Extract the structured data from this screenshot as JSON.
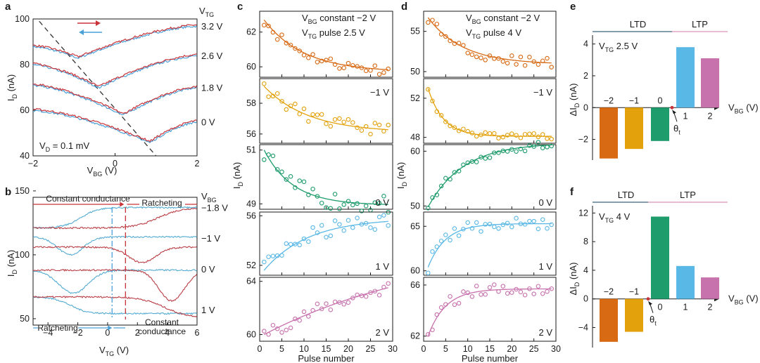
{
  "panel_labels": {
    "a": "a",
    "b": "b",
    "c": "c",
    "d": "d",
    "e": "e",
    "f": "f"
  },
  "colors": {
    "red": "#c8343a",
    "blue": "#4aa0d8",
    "orange": "#d86a14",
    "gold": "#e3a20c",
    "green": "#1e9c6c",
    "sky": "#5ab8e6",
    "pink": "#c772ad",
    "dark": "#1a1a1a"
  },
  "chart_data": [
    {
      "id": "a",
      "type": "line",
      "xlabel": "V_BG (V)",
      "ylabel": "I_D (nA)",
      "xlim": [
        -2,
        2
      ],
      "ylim": [
        40,
        100
      ],
      "xticks": [
        "-2",
        "0",
        "2"
      ],
      "yticks": [
        "40",
        "60",
        "80",
        "100"
      ],
      "legend_title": "V_TG",
      "annotation": "V_D = 0.1 mV",
      "series": [
        {
          "name": "3.2 V",
          "min_x": -0.9,
          "min_y": 83,
          "left_y": 88,
          "right_y": 97
        },
        {
          "name": "2.6 V",
          "min_x": -0.4,
          "min_y": 70,
          "left_y": 80,
          "right_y": 84
        },
        {
          "name": "1.8 V",
          "min_x": 0.2,
          "min_y": 58,
          "left_y": 71,
          "right_y": 70
        },
        {
          "name": "0 V",
          "min_x": 0.85,
          "min_y": 46,
          "left_y": 60,
          "right_y": 55
        }
      ],
      "dashed_line": {
        "x": [
          -1.85,
          1.0
        ],
        "y": [
          99,
          40
        ]
      }
    },
    {
      "id": "b",
      "type": "line",
      "xlabel": "V_TG (V)",
      "ylabel": "I_D (nA)",
      "xlim": [
        -5,
        6
      ],
      "ylim": [
        45,
        145
      ],
      "xticks": [
        "-4",
        "-2",
        "0",
        "2",
        "4",
        "6"
      ],
      "yticks": [
        "50",
        "100",
        "150"
      ],
      "legend_title": "V_BG",
      "series_names": [
        "-1.8 V",
        "-1 V",
        "0 V",
        "1 V"
      ],
      "annotations": [
        "Constant conductance",
        "Ratcheting",
        "Ratcheting",
        "Constant conductance"
      ],
      "vlines": [
        0.3,
        1.2
      ]
    },
    {
      "id": "c",
      "type": "scatter",
      "xlabel": "Pulse number",
      "ylabel": "I_D (nA)",
      "xticks": [
        "0",
        "5",
        "10",
        "15",
        "20",
        "25",
        "30"
      ],
      "xlim": [
        0,
        30
      ],
      "header": [
        "V_BG constant −2 V",
        "V_TG pulse 2.5 V"
      ],
      "subplots": [
        {
          "label": "",
          "ylim": [
            59.4,
            63.2
          ],
          "yticks": [
            "60",
            "62"
          ],
          "y0": 62.7,
          "yinf": 59.7,
          "tau": 9,
          "noise": 0.15
        },
        {
          "label": "−1 V",
          "ylim": [
            55.4,
            59.6
          ],
          "yticks": [
            "56",
            "58"
          ],
          "y0": 59.1,
          "yinf": 56.1,
          "tau": 10,
          "noise": 0.2
        },
        {
          "label": "0 V",
          "ylim": [
            48.8,
            51.2
          ],
          "yticks": [
            "49",
            "51"
          ],
          "y0": 51.0,
          "yinf": 48.95,
          "tau": 6.5,
          "noise": 0.18
        },
        {
          "label": "1 V",
          "ylim": [
            51.2,
            56.3
          ],
          "yticks": [
            "52",
            "56"
          ],
          "y0": 51.6,
          "yinf": 55.8,
          "tau": 10,
          "noise": 0.35
        },
        {
          "label": "2 V",
          "ylim": [
            59.5,
            64.3
          ],
          "yticks": [
            "60",
            "64"
          ],
          "y0": 60.0,
          "yinf": 67.0,
          "tau": 40,
          "noise": 0.25
        }
      ]
    },
    {
      "id": "d",
      "type": "scatter",
      "xlabel": "Pulse number",
      "ylabel": "I_D (nA)",
      "xticks": [
        "0",
        "5",
        "10",
        "15",
        "20",
        "25",
        "30"
      ],
      "xlim": [
        0,
        30
      ],
      "header": [
        "V_BG constant −2 V",
        "V_TG pulse 4 V"
      ],
      "subplots": [
        {
          "label": "",
          "ylim": [
            49.3,
            57.5
          ],
          "yticks": [
            "50",
            "55"
          ],
          "y0": 56.7,
          "yinf": 50.9,
          "tau": 8,
          "noise": 0.3
        },
        {
          "label": "−1 V",
          "ylim": [
            47.4,
            54.0
          ],
          "yticks": [
            "48",
            "52"
          ],
          "y0": 53.0,
          "yinf": 48.1,
          "tau": 3.5,
          "noise": 0.15
        },
        {
          "label": "0 V",
          "ylim": [
            49.4,
            61.2
          ],
          "yticks": [
            "50",
            "60"
          ],
          "y0": 49.8,
          "yinf": 61.5,
          "tau": 8,
          "noise": 0.35
        },
        {
          "label": "1 V",
          "ylim": [
            59.5,
            66.6
          ],
          "yticks": [
            "60",
            "65"
          ],
          "y0": 60.4,
          "yinf": 65.3,
          "tau": 4,
          "noise": 0.35
        },
        {
          "label": "2 V",
          "ylim": [
            61.6,
            66.6
          ],
          "yticks": [
            "62",
            "66"
          ],
          "y0": 62.0,
          "yinf": 65.7,
          "tau": 4,
          "noise": 0.25
        }
      ]
    },
    {
      "id": "e",
      "type": "bar",
      "xlabel": "V_BG (V)",
      "ylabel": "ΔI_D (nA)",
      "annotation": "V_TG 2.5 V",
      "threshold_label": "θt",
      "region_labels": [
        "LTD",
        "LTP"
      ],
      "categories": [
        "−2",
        "−1",
        "0",
        "1",
        "2"
      ],
      "values": [
        -3.2,
        -2.6,
        -2.1,
        3.8,
        3.1
      ],
      "ylim": [
        -3.3,
        5.0
      ],
      "yticks": [
        "-2",
        "0",
        "2",
        "4"
      ]
    },
    {
      "id": "f",
      "type": "bar",
      "xlabel": "V_BG (V)",
      "ylabel": "ΔI_D (nA)",
      "annotation": "V_TG 4 V",
      "threshold_label": "θt",
      "region_labels": [
        "LTD",
        "LTP"
      ],
      "categories": [
        "−2",
        "−1",
        "0",
        "1",
        "2"
      ],
      "values": [
        -6.0,
        -4.6,
        11.5,
        4.6,
        3.0
      ],
      "ylim": [
        -6.8,
        14.0
      ],
      "yticks": [
        "-4",
        "0",
        "4",
        "8",
        "12"
      ]
    }
  ]
}
